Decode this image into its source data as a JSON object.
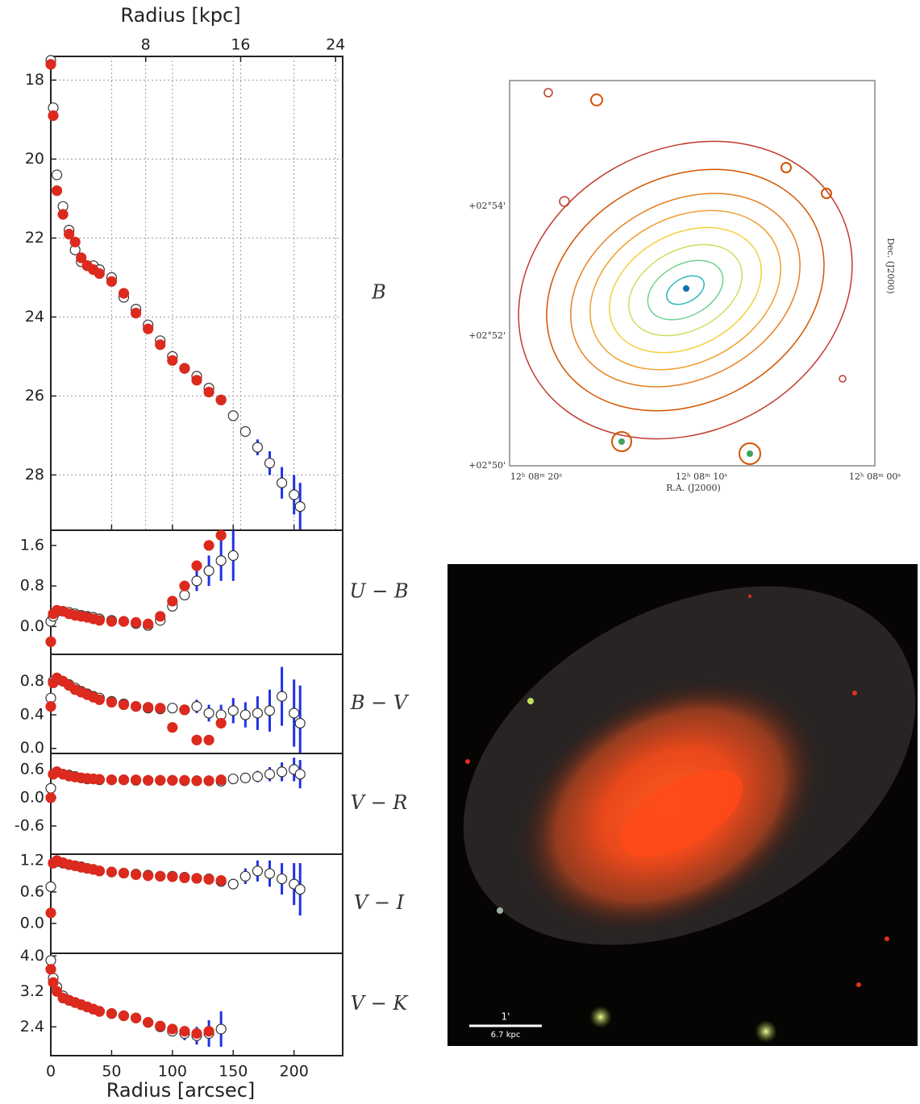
{
  "chart_data": [
    {
      "type": "scatter",
      "panel_label": "B",
      "x2label": "Radius [kpc]",
      "x2lim": [
        0,
        24.6
      ],
      "x2ticks": [
        8,
        16,
        24
      ],
      "grid": true,
      "xlim": [
        0,
        240
      ],
      "xticks": [
        50,
        100,
        150,
        200
      ],
      "ylim": [
        29.4,
        17.4
      ],
      "yticks": [
        18,
        20,
        22,
        24,
        26,
        28
      ],
      "x": [
        0,
        2,
        5,
        10,
        15,
        20,
        25,
        30,
        35,
        40,
        50,
        60,
        70,
        80,
        90,
        100,
        110,
        120,
        130,
        140,
        150,
        160,
        170,
        180,
        190,
        200,
        205
      ],
      "series": [
        {
          "color": "#ffffff",
          "error_color": "#1f32e6",
          "values": [
            17.5,
            18.7,
            20.4,
            21.2,
            21.8,
            22.3,
            22.6,
            22.7,
            22.7,
            22.8,
            23.0,
            23.5,
            23.8,
            24.2,
            24.6,
            25.0,
            25.3,
            25.5,
            25.8,
            26.1,
            26.5,
            26.9,
            27.3,
            27.7,
            28.2,
            28.5,
            28.8
          ],
          "errors": [
            0.02,
            0.02,
            0.02,
            0.02,
            0.02,
            0.02,
            0.02,
            0.02,
            0.02,
            0.02,
            0.02,
            0.02,
            0.02,
            0.02,
            0.02,
            0.02,
            0.02,
            0.02,
            0.02,
            0.02,
            0.05,
            0.1,
            0.2,
            0.3,
            0.4,
            0.5,
            0.6
          ]
        },
        {
          "color": "#dc2a1e",
          "values": [
            17.6,
            18.9,
            20.8,
            21.4,
            21.9,
            22.1,
            22.5,
            22.7,
            22.8,
            22.9,
            23.1,
            23.4,
            23.9,
            24.3,
            24.7,
            25.1,
            25.3,
            25.6,
            25.9,
            26.1,
            null,
            null,
            null,
            null,
            null,
            null,
            null
          ]
        }
      ]
    },
    {
      "type": "scatter",
      "panel_label": "U − B",
      "xlim": [
        0,
        240
      ],
      "ylim": [
        -0.55,
        1.9
      ],
      "yticks": [
        1.6,
        0.8,
        {
          "value": 0,
          "label": "0.0"
        }
      ],
      "x": [
        0,
        2,
        5,
        10,
        15,
        20,
        25,
        30,
        35,
        40,
        50,
        60,
        70,
        80,
        90,
        100,
        110,
        120,
        130,
        140,
        150,
        160,
        170,
        180,
        190,
        200,
        205
      ],
      "series": [
        {
          "color": "#ffffff",
          "error_color": "#1f32e6",
          "values": [
            0.1,
            0.2,
            0.3,
            0.3,
            0.28,
            0.25,
            0.22,
            0.2,
            0.18,
            0.15,
            0.12,
            0.1,
            0.06,
            0.02,
            0.12,
            0.4,
            0.62,
            0.9,
            1.1,
            1.3,
            1.4,
            null,
            null,
            null,
            null,
            null,
            null
          ],
          "errors": [
            0.02,
            0.02,
            0.02,
            0.02,
            0.02,
            0.02,
            0.02,
            0.02,
            0.02,
            0.02,
            0.02,
            0.02,
            0.02,
            0.02,
            0.02,
            0.05,
            0.1,
            0.2,
            0.3,
            0.4,
            0.5,
            null,
            null,
            null,
            null,
            null,
            null
          ]
        },
        {
          "color": "#dc2a1e",
          "values": [
            -0.3,
            0.25,
            0.32,
            0.3,
            0.25,
            0.22,
            0.2,
            0.18,
            0.15,
            0.12,
            0.1,
            0.1,
            0.08,
            0.05,
            0.2,
            0.5,
            0.8,
            1.2,
            1.6,
            1.8,
            null,
            null,
            null,
            null,
            null,
            null,
            null
          ]
        }
      ]
    },
    {
      "type": "scatter",
      "panel_label": "B − V",
      "xlim": [
        0,
        240
      ],
      "ylim": [
        -0.06,
        1.12
      ],
      "yticks": [
        0.8,
        0.4,
        {
          "value": 0,
          "label": "0.0"
        }
      ],
      "x": [
        0,
        2,
        5,
        10,
        15,
        20,
        25,
        30,
        35,
        40,
        50,
        60,
        70,
        80,
        90,
        100,
        110,
        120,
        130,
        140,
        150,
        160,
        170,
        180,
        190,
        200,
        205
      ],
      "series": [
        {
          "color": "#ffffff",
          "error_color": "#1f32e6",
          "values": [
            0.6,
            0.8,
            0.82,
            0.8,
            0.76,
            0.72,
            0.68,
            0.65,
            0.62,
            0.6,
            0.56,
            0.53,
            0.5,
            0.48,
            0.47,
            0.48,
            0.46,
            0.5,
            0.42,
            0.4,
            0.45,
            0.4,
            0.42,
            0.45,
            0.62,
            0.42,
            0.3
          ],
          "errors": [
            0.02,
            0.02,
            0.02,
            0.02,
            0.02,
            0.02,
            0.02,
            0.02,
            0.02,
            0.02,
            0.02,
            0.02,
            0.02,
            0.02,
            0.02,
            0.03,
            0.05,
            0.08,
            0.1,
            0.12,
            0.15,
            0.15,
            0.2,
            0.25,
            0.35,
            0.4,
            0.45
          ]
        },
        {
          "color": "#dc2a1e",
          "values": [
            0.5,
            0.78,
            0.84,
            0.8,
            0.75,
            0.7,
            0.67,
            0.64,
            0.61,
            0.58,
            0.55,
            0.52,
            0.5,
            0.49,
            0.48,
            0.25,
            0.46,
            0.1,
            0.1,
            0.3,
            null,
            null,
            null,
            null,
            null,
            null,
            null
          ]
        }
      ]
    },
    {
      "type": "scatter",
      "panel_label": "V − R",
      "xlim": [
        0,
        240
      ],
      "ylim": [
        -1.2,
        0.94
      ],
      "yticks": [
        0.6,
        {
          "value": 0,
          "label": "0.0"
        },
        -0.6
      ],
      "x": [
        0,
        2,
        5,
        10,
        15,
        20,
        25,
        30,
        35,
        40,
        50,
        60,
        70,
        80,
        90,
        100,
        110,
        120,
        130,
        140,
        150,
        160,
        170,
        180,
        190,
        200,
        205
      ],
      "series": [
        {
          "color": "#ffffff",
          "error_color": "#1f32e6",
          "values": [
            0.2,
            0.5,
            0.55,
            0.5,
            0.48,
            0.45,
            0.42,
            0.4,
            0.4,
            0.38,
            0.38,
            0.38,
            0.37,
            0.37,
            0.37,
            0.37,
            0.36,
            0.36,
            0.36,
            0.35,
            0.4,
            0.42,
            0.45,
            0.5,
            0.55,
            0.6,
            0.5
          ],
          "errors": [
            0.02,
            0.02,
            0.02,
            0.02,
            0.02,
            0.02,
            0.02,
            0.02,
            0.02,
            0.02,
            0.02,
            0.02,
            0.02,
            0.02,
            0.02,
            0.03,
            0.03,
            0.04,
            0.05,
            0.06,
            0.08,
            0.1,
            0.12,
            0.15,
            0.2,
            0.25,
            0.3
          ]
        },
        {
          "color": "#dc2a1e",
          "values": [
            0.0,
            0.5,
            0.55,
            0.5,
            0.46,
            0.44,
            0.42,
            0.41,
            0.4,
            0.39,
            0.38,
            0.38,
            0.38,
            0.37,
            0.37,
            0.37,
            0.37,
            0.36,
            0.36,
            0.38,
            null,
            null,
            null,
            null,
            null,
            null,
            null
          ]
        }
      ]
    },
    {
      "type": "scatter",
      "panel_label": "V − I",
      "xlim": [
        0,
        240
      ],
      "ylim": [
        -0.57,
        1.32
      ],
      "yticks": [
        1.2,
        0.6,
        {
          "value": 0,
          "label": "0.0"
        }
      ],
      "x": [
        0,
        2,
        5,
        10,
        15,
        20,
        25,
        30,
        35,
        40,
        50,
        60,
        70,
        80,
        90,
        100,
        110,
        120,
        130,
        140,
        150,
        160,
        170,
        180,
        190,
        200,
        205
      ],
      "series": [
        {
          "color": "#ffffff",
          "error_color": "#1f32e6",
          "values": [
            0.7,
            1.15,
            1.18,
            1.15,
            1.12,
            1.1,
            1.08,
            1.05,
            1.03,
            1.0,
            0.98,
            0.96,
            0.94,
            0.92,
            0.9,
            0.9,
            0.88,
            0.86,
            0.85,
            0.8,
            0.75,
            0.9,
            1.0,
            0.95,
            0.85,
            0.75,
            0.65
          ],
          "errors": [
            0.02,
            0.02,
            0.02,
            0.02,
            0.02,
            0.02,
            0.02,
            0.02,
            0.02,
            0.02,
            0.02,
            0.02,
            0.02,
            0.02,
            0.02,
            0.03,
            0.03,
            0.04,
            0.05,
            0.06,
            0.1,
            0.15,
            0.2,
            0.25,
            0.3,
            0.4,
            0.5
          ]
        },
        {
          "color": "#dc2a1e",
          "values": [
            0.2,
            1.15,
            1.2,
            1.16,
            1.12,
            1.1,
            1.07,
            1.05,
            1.03,
            1.0,
            0.98,
            0.96,
            0.93,
            0.91,
            0.9,
            0.89,
            0.87,
            0.86,
            0.84,
            0.82,
            null,
            null,
            null,
            null,
            null,
            null,
            null
          ]
        }
      ]
    },
    {
      "type": "scatter",
      "panel_label": "V − K",
      "xlabel": "Radius [arcsec]",
      "xlim": [
        0,
        240
      ],
      "xticks": [
        0,
        50,
        100,
        150,
        200
      ],
      "ylim": [
        1.75,
        4.06
      ],
      "yticks": [
        {
          "value": 4,
          "label": "4.0"
        },
        3.2,
        2.4
      ],
      "x": [
        0,
        2,
        5,
        10,
        15,
        20,
        25,
        30,
        35,
        40,
        50,
        60,
        70,
        80,
        90,
        100,
        110,
        120,
        130,
        140,
        150,
        160,
        170,
        180,
        190,
        200,
        205
      ],
      "series": [
        {
          "color": "#ffffff",
          "error_color": "#1f32e6",
          "values": [
            3.9,
            3.5,
            3.3,
            3.1,
            3.0,
            2.95,
            2.9,
            2.85,
            2.8,
            2.75,
            2.7,
            2.65,
            2.6,
            2.5,
            2.4,
            2.3,
            2.25,
            2.2,
            2.25,
            2.35,
            null,
            null,
            null,
            null,
            null,
            null,
            null
          ],
          "errors": [
            0.02,
            0.02,
            0.02,
            0.02,
            0.02,
            0.02,
            0.02,
            0.02,
            0.02,
            0.02,
            0.02,
            0.02,
            0.02,
            0.03,
            0.05,
            0.1,
            0.15,
            0.2,
            0.3,
            0.4,
            null,
            null,
            null,
            null,
            null,
            null,
            null
          ]
        },
        {
          "color": "#dc2a1e",
          "values": [
            3.7,
            3.4,
            3.2,
            3.05,
            3.0,
            2.95,
            2.9,
            2.85,
            2.8,
            2.75,
            2.7,
            2.65,
            2.6,
            2.5,
            2.42,
            2.35,
            2.3,
            2.25,
            2.3,
            null,
            null,
            null,
            null,
            null,
            null,
            null,
            null
          ]
        }
      ]
    }
  ],
  "contour_map": {
    "y_tick_labels": [
      "+02°54'",
      "+02°52'",
      "+02°50'"
    ],
    "x_tick_labels": [
      "12ʰ 08ᵐ 20ˢ",
      "12ʰ 08ᵐ 10ˢ",
      "12ʰ 08ᵐ 00ˢ"
    ],
    "xlabel": "R.A. (J2000)",
    "ylabel": "Dec. (J2000)"
  },
  "color_image": {
    "scale_label": "1'",
    "scale_sublabel": "6.7 kpc"
  }
}
